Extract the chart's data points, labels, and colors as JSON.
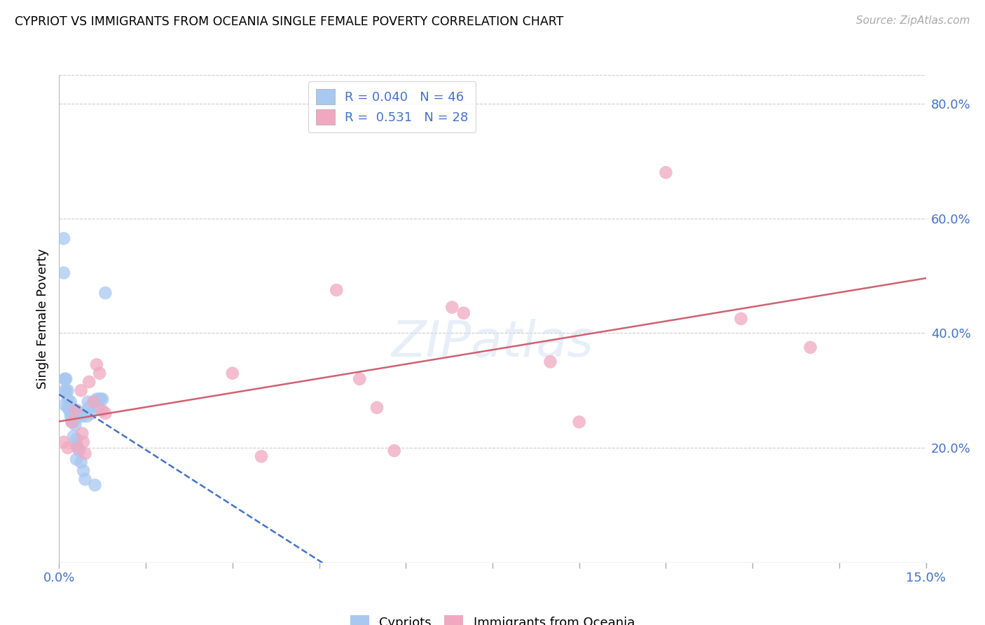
{
  "title": "CYPRIOT VS IMMIGRANTS FROM OCEANIA SINGLE FEMALE POVERTY CORRELATION CHART",
  "source": "Source: ZipAtlas.com",
  "ylabel": "Single Female Poverty",
  "xlim": [
    0.0,
    0.15
  ],
  "ylim": [
    0.0,
    0.85
  ],
  "ytick_labels_right": [
    "20.0%",
    "40.0%",
    "60.0%",
    "80.0%"
  ],
  "yticks_right": [
    0.2,
    0.4,
    0.6,
    0.8
  ],
  "cypriot_color": "#a8c8f0",
  "oceania_color": "#f0a8c0",
  "trend_cypriot_color": "#4472c4",
  "trend_oceania_color": "#d06070",
  "R_cypriot": 0.04,
  "N_cypriot": 46,
  "R_oceania": 0.531,
  "N_oceania": 28,
  "cypriot_x": [
    0.0008,
    0.0008,
    0.001,
    0.001,
    0.001,
    0.0012,
    0.0015,
    0.0015,
    0.0015,
    0.0018,
    0.002,
    0.002,
    0.002,
    0.0022,
    0.0022,
    0.0022,
    0.0025,
    0.0025,
    0.0025,
    0.0028,
    0.0028,
    0.003,
    0.003,
    0.003,
    0.0032,
    0.0032,
    0.0035,
    0.0038,
    0.004,
    0.004,
    0.0042,
    0.0045,
    0.0048,
    0.005,
    0.0052,
    0.0055,
    0.006,
    0.0062,
    0.0065,
    0.0068,
    0.007,
    0.0072,
    0.0075,
    0.008,
    0.001,
    0.0012
  ],
  "cypriot_y": [
    0.565,
    0.505,
    0.32,
    0.3,
    0.275,
    0.32,
    0.3,
    0.285,
    0.27,
    0.265,
    0.28,
    0.265,
    0.255,
    0.27,
    0.255,
    0.245,
    0.255,
    0.245,
    0.22,
    0.255,
    0.24,
    0.215,
    0.205,
    0.18,
    0.265,
    0.255,
    0.195,
    0.175,
    0.26,
    0.255,
    0.16,
    0.145,
    0.255,
    0.28,
    0.27,
    0.26,
    0.28,
    0.135,
    0.285,
    0.27,
    0.285,
    0.285,
    0.285,
    0.47,
    0.32,
    0.3
  ],
  "oceania_x": [
    0.0008,
    0.0015,
    0.0022,
    0.0028,
    0.0032,
    0.0038,
    0.004,
    0.0042,
    0.0045,
    0.0052,
    0.006,
    0.0065,
    0.007,
    0.0075,
    0.008,
    0.03,
    0.035,
    0.048,
    0.052,
    0.055,
    0.058,
    0.068,
    0.07,
    0.085,
    0.09,
    0.105,
    0.118,
    0.13
  ],
  "oceania_y": [
    0.21,
    0.2,
    0.245,
    0.265,
    0.2,
    0.3,
    0.225,
    0.21,
    0.19,
    0.315,
    0.28,
    0.345,
    0.33,
    0.265,
    0.26,
    0.33,
    0.185,
    0.475,
    0.32,
    0.27,
    0.195,
    0.445,
    0.435,
    0.35,
    0.245,
    0.68,
    0.425,
    0.375
  ]
}
